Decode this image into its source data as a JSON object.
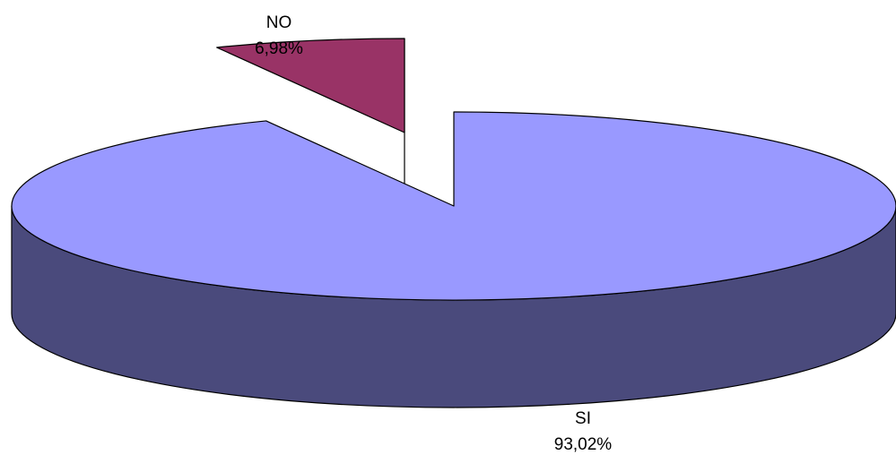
{
  "chart_data": {
    "type": "pie",
    "three_d": true,
    "exploded": true,
    "categories": [
      "SI",
      "NO"
    ],
    "values": [
      93.02,
      6.98
    ],
    "value_labels": [
      "93,02%",
      "6,98%"
    ],
    "colors": {
      "SI": {
        "top": "#9999ff",
        "side": "#4a4a7c"
      },
      "NO": {
        "top": "#993366",
        "side": "#4d1a33"
      }
    },
    "title": "",
    "legend": "none"
  }
}
